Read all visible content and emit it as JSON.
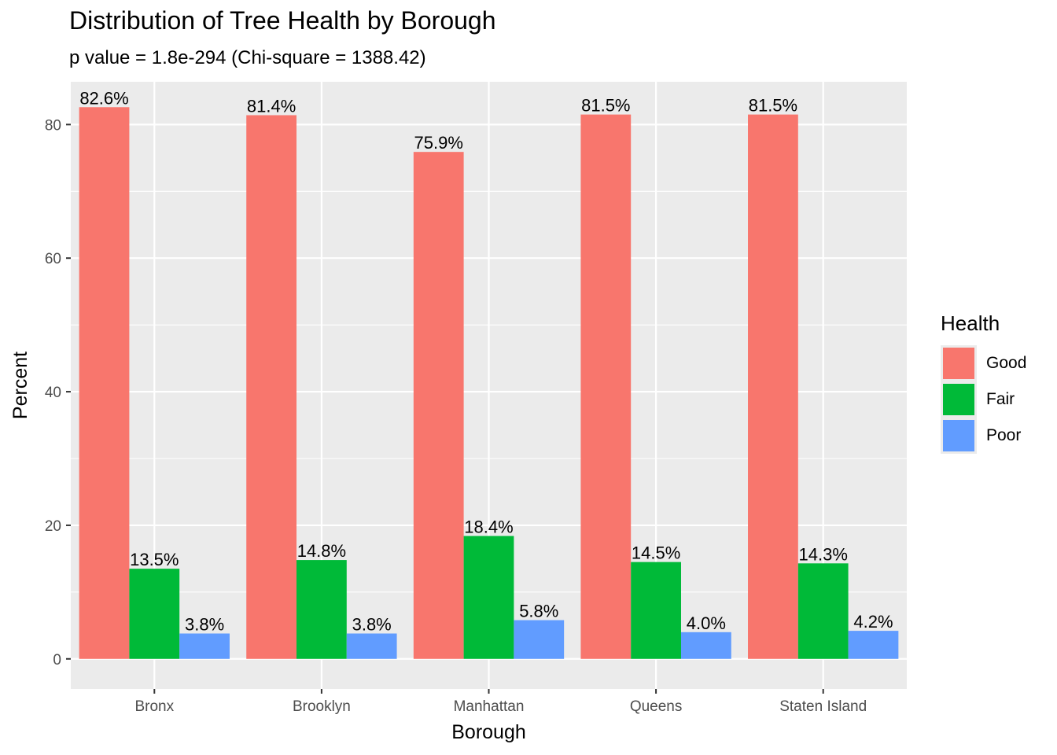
{
  "chart_data": {
    "type": "bar",
    "title": "Distribution of Tree Health by Borough",
    "subtitle": "p value = 1.8e-294 (Chi-square = 1388.42)",
    "xlabel": "Borough",
    "ylabel": "Percent",
    "ylim": [
      -4.5,
      86.4
    ],
    "yticks": [
      0,
      20,
      40,
      60,
      80
    ],
    "categories": [
      "Bronx",
      "Brooklyn",
      "Manhattan",
      "Queens",
      "Staten Island"
    ],
    "legend_title": "Health",
    "legend_position": "right",
    "grid": true,
    "series": [
      {
        "name": "Good",
        "color": "#F8766D",
        "values": [
          82.6,
          81.4,
          75.9,
          81.5,
          81.5
        ],
        "labels": [
          "82.6%",
          "81.4%",
          "75.9%",
          "81.5%",
          "81.5%"
        ]
      },
      {
        "name": "Fair",
        "color": "#00BA38",
        "values": [
          13.5,
          14.8,
          18.4,
          14.5,
          14.3
        ],
        "labels": [
          "13.5%",
          "14.8%",
          "18.4%",
          "14.5%",
          "14.3%"
        ]
      },
      {
        "name": "Poor",
        "color": "#619CFF",
        "values": [
          3.8,
          3.8,
          5.8,
          4.0,
          4.2
        ],
        "labels": [
          "3.8%",
          "3.8%",
          "5.8%",
          "4.0%",
          "4.2%"
        ]
      }
    ]
  }
}
